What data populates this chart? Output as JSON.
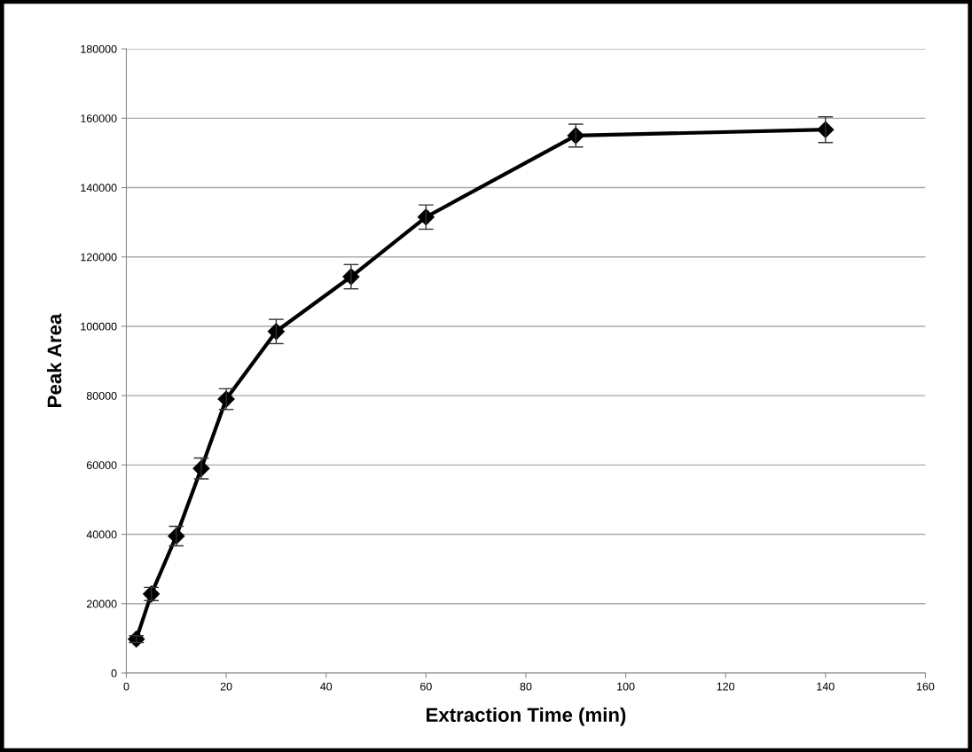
{
  "chart_data": {
    "type": "line",
    "xlabel": "Extraction Time (min)",
    "ylabel": "Peak Area",
    "x": [
      2,
      5,
      10,
      15,
      20,
      30,
      45,
      60,
      90,
      140
    ],
    "series": [
      {
        "color": "#000000",
        "values": [
          9800,
          22800,
          39500,
          59000,
          79000,
          98500,
          114300,
          131500,
          155000,
          156700
        ],
        "errors": [
          1000,
          1900,
          2800,
          3000,
          3000,
          3500,
          3500,
          3500,
          3300,
          3700
        ]
      }
    ],
    "xlim": [
      0,
      160
    ],
    "xticks": [
      0,
      20,
      40,
      60,
      80,
      100,
      120,
      140,
      160
    ],
    "ylim": [
      0,
      180000
    ],
    "yticks": [
      0,
      20000,
      40000,
      60000,
      80000,
      100000,
      120000,
      140000,
      160000,
      180000
    ],
    "grid": "y",
    "marker": "diamond",
    "line_style": "solid",
    "legend": false
  }
}
